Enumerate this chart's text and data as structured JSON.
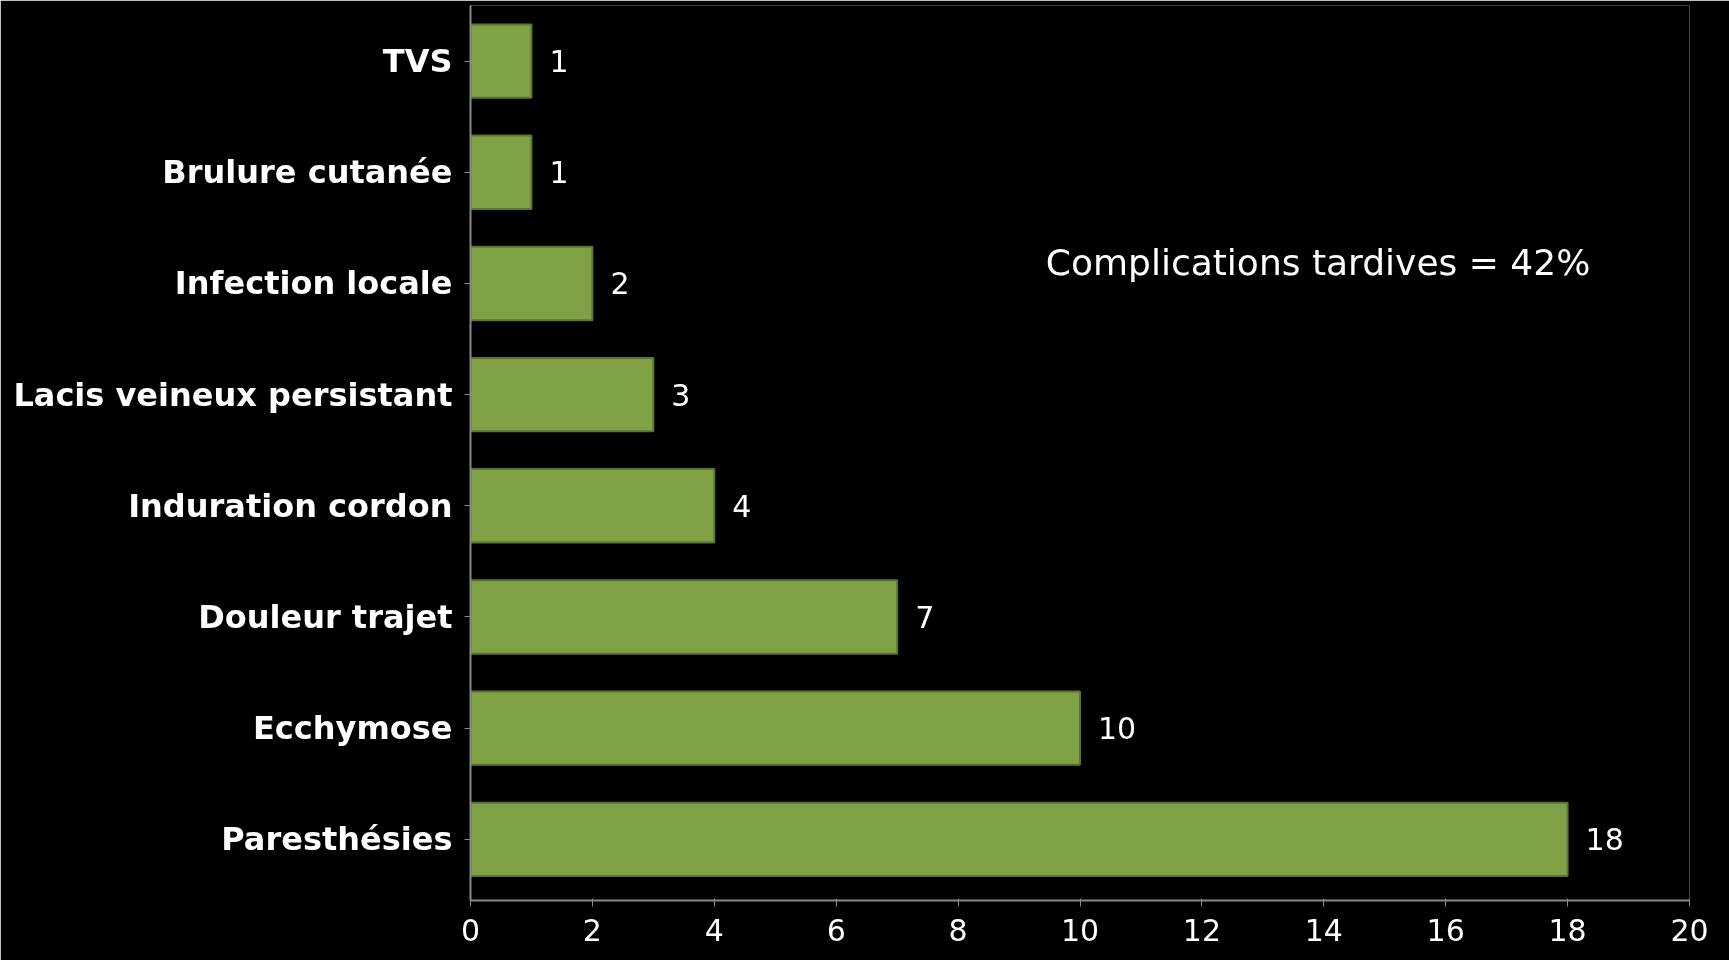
{
  "chart_data": {
    "type": "bar",
    "orientation": "horizontal",
    "categories": [
      "TVS",
      "Brulure cutanée",
      "Infection locale",
      "Lacis veineux persistant",
      "Induration cordon",
      "Douleur trajet",
      "Ecchymose",
      "Paresthésies"
    ],
    "values": [
      1,
      1,
      2,
      3,
      4,
      7,
      10,
      18
    ],
    "color": "#80a045",
    "xlim": [
      0,
      20
    ],
    "xticks": [
      0,
      2,
      4,
      6,
      8,
      10,
      12,
      14,
      16,
      18,
      20
    ],
    "data_labels": true,
    "grid": false,
    "annotations": [
      "Complications  tardives = 42%"
    ]
  }
}
